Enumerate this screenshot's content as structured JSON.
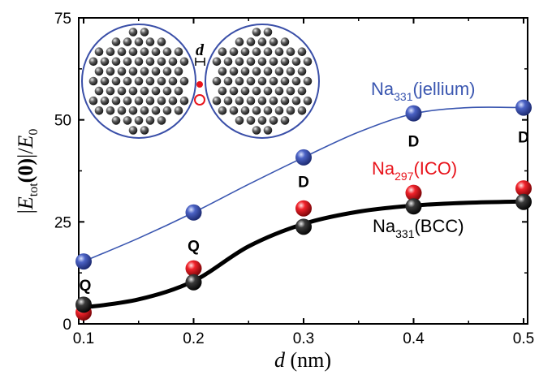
{
  "chart_data": {
    "type": "scatter",
    "xlabel": {
      "var": "d",
      "unit": " (nm)"
    },
    "ylabel": {
      "open": "|",
      "E": "E",
      "sub": "tot",
      "arg": "(0)",
      "close": "|/",
      "E0": "E",
      "sub0": "0"
    },
    "xlim": [
      0.1,
      0.5
    ],
    "ylim": [
      0,
      75
    ],
    "xticks": [
      0.1,
      0.2,
      0.3,
      0.4,
      0.5
    ],
    "yticks": [
      0,
      25,
      50,
      75
    ],
    "grid": false,
    "series": [
      {
        "key": "jellium",
        "label": {
          "prefix": "Na",
          "sub": "331",
          "suffix": "(jellium)"
        },
        "color": "#3a4fa8",
        "fit_color": "#3a56b0",
        "x": [
          0.1,
          0.2,
          0.3,
          0.4,
          0.5
        ],
        "y": [
          15.3,
          27.3,
          40.8,
          51.6,
          53.0
        ],
        "curve_x": [
          0.1,
          0.15,
          0.2,
          0.25,
          0.3,
          0.35,
          0.4,
          0.45,
          0.5
        ],
        "curve_y": [
          15.3,
          21.0,
          27.3,
          34.2,
          40.8,
          47.0,
          51.5,
          53.0,
          53.0
        ]
      },
      {
        "key": "ico",
        "label": {
          "prefix": "Na",
          "sub": "297",
          "suffix": "(ICO)"
        },
        "color": "#e8141c",
        "x": [
          0.1,
          0.2,
          0.3,
          0.4,
          0.5
        ],
        "y": [
          2.8,
          13.6,
          28.3,
          32.1,
          33.2
        ]
      },
      {
        "key": "bcc",
        "label": {
          "prefix": "Na",
          "sub": "331",
          "suffix": "(BCC)"
        },
        "color": "#222222",
        "fit_color": "#000000",
        "x": [
          0.1,
          0.2,
          0.3,
          0.4,
          0.5
        ],
        "y": [
          4.7,
          10.2,
          23.8,
          28.8,
          29.9
        ],
        "curve_x": [
          0.1,
          0.15,
          0.2,
          0.25,
          0.3,
          0.35,
          0.4,
          0.45,
          0.5
        ],
        "curve_y": [
          4.0,
          6.0,
          10.5,
          19.0,
          24.5,
          27.5,
          29.0,
          29.7,
          30.0
        ]
      }
    ],
    "annotations": [
      {
        "text": "Q",
        "x": 0.1,
        "y": 8.2
      },
      {
        "text": "Q",
        "x": 0.2,
        "y": 17.8
      },
      {
        "text": "D",
        "x": 0.3,
        "y": 33.5
      },
      {
        "text": "D",
        "x": 0.4,
        "y": 43.5
      },
      {
        "text": "D",
        "x": 0.5,
        "y": 44.5
      }
    ],
    "inset": {
      "gap_label": "d"
    }
  }
}
